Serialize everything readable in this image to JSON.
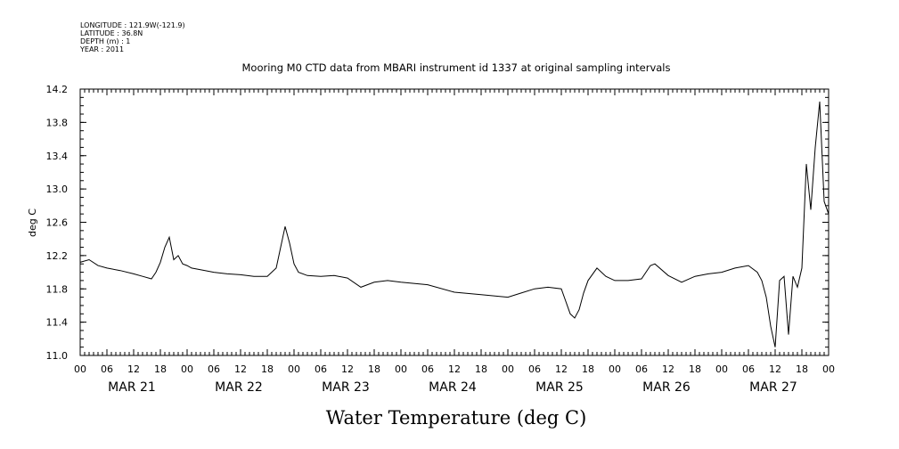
{
  "header": {
    "longitude": "LONGITUDE : 121.9W(-121.9)",
    "latitude": "LATITUDE : 36.8N",
    "depth": "DEPTH (m) : 1",
    "year": "YEAR : 2011"
  },
  "chart_data": {
    "type": "line",
    "title": "Mooring M0 CTD data from MBARI instrument id 1337 at original sampling intervals",
    "xlabel": "Water Temperature (deg C)",
    "ylabel": "deg C",
    "ylim": [
      11.0,
      14.2
    ],
    "yticks": [
      "11.0",
      "11.4",
      "11.8",
      "12.2",
      "12.6",
      "13.0",
      "13.4",
      "13.8",
      "14.2"
    ],
    "xlim": [
      "2011-03-21T00:00",
      "2011-03-28T00:00"
    ],
    "hour_tick_labels": [
      "00",
      "06",
      "12",
      "18"
    ],
    "date_labels": [
      "MAR 21",
      "MAR 22",
      "MAR 23",
      "MAR 24",
      "MAR 25",
      "MAR 26",
      "MAR 27"
    ],
    "grid": false,
    "series": [
      {
        "color": "#000000",
        "x": [
          "2011-03-21T00:00",
          "2011-03-21T02:00",
          "2011-03-21T04:00",
          "2011-03-21T06:00",
          "2011-03-21T09:00",
          "2011-03-21T12:00",
          "2011-03-21T14:00",
          "2011-03-21T16:00",
          "2011-03-21T17:00",
          "2011-03-21T18:00",
          "2011-03-21T19:00",
          "2011-03-21T20:00",
          "2011-03-21T21:00",
          "2011-03-21T22:00",
          "2011-03-21T23:00",
          "2011-03-22T00:00",
          "2011-03-22T01:00",
          "2011-03-22T03:00",
          "2011-03-22T06:00",
          "2011-03-22T09:00",
          "2011-03-22T12:00",
          "2011-03-22T15:00",
          "2011-03-22T18:00",
          "2011-03-22T20:00",
          "2011-03-22T21:00",
          "2011-03-22T22:00",
          "2011-03-22T23:00",
          "2011-03-23T00:00",
          "2011-03-23T01:00",
          "2011-03-23T03:00",
          "2011-03-23T06:00",
          "2011-03-23T09:00",
          "2011-03-23T12:00",
          "2011-03-23T15:00",
          "2011-03-23T18:00",
          "2011-03-23T21:00",
          "2011-03-24T00:00",
          "2011-03-24T06:00",
          "2011-03-24T12:00",
          "2011-03-24T18:00",
          "2011-03-25T00:00",
          "2011-03-25T03:00",
          "2011-03-25T06:00",
          "2011-03-25T09:00",
          "2011-03-25T12:00",
          "2011-03-25T14:00",
          "2011-03-25T15:00",
          "2011-03-25T16:00",
          "2011-03-25T17:00",
          "2011-03-25T18:00",
          "2011-03-25T20:00",
          "2011-03-25T22:00",
          "2011-03-26T00:00",
          "2011-03-26T03:00",
          "2011-03-26T06:00",
          "2011-03-26T08:00",
          "2011-03-26T09:00",
          "2011-03-26T12:00",
          "2011-03-26T15:00",
          "2011-03-26T18:00",
          "2011-03-26T21:00",
          "2011-03-27T00:00",
          "2011-03-27T03:00",
          "2011-03-27T06:00",
          "2011-03-27T08:00",
          "2011-03-27T09:00",
          "2011-03-27T10:00",
          "2011-03-27T11:00",
          "2011-03-27T12:00",
          "2011-03-27T13:00",
          "2011-03-27T14:00",
          "2011-03-27T15:00",
          "2011-03-27T16:00",
          "2011-03-27T17:00",
          "2011-03-27T18:00",
          "2011-03-27T19:00",
          "2011-03-27T20:00",
          "2011-03-27T21:00",
          "2011-03-27T22:00",
          "2011-03-27T23:00",
          "2011-03-28T00:00"
        ],
        "y": [
          12.12,
          12.15,
          12.08,
          12.05,
          12.02,
          11.98,
          11.95,
          11.92,
          12.0,
          12.12,
          12.3,
          12.42,
          12.15,
          12.2,
          12.1,
          12.08,
          12.05,
          12.03,
          12.0,
          11.98,
          11.97,
          11.95,
          11.95,
          12.05,
          12.3,
          12.55,
          12.35,
          12.1,
          12.0,
          11.96,
          11.95,
          11.96,
          11.93,
          11.82,
          11.88,
          11.9,
          11.88,
          11.85,
          11.76,
          11.73,
          11.7,
          11.75,
          11.8,
          11.82,
          11.8,
          11.5,
          11.45,
          11.55,
          11.75,
          11.9,
          12.05,
          11.95,
          11.9,
          11.9,
          11.92,
          12.08,
          12.1,
          11.96,
          11.88,
          11.95,
          11.98,
          12.0,
          12.05,
          12.08,
          12.0,
          11.9,
          11.7,
          11.35,
          11.1,
          11.9,
          11.95,
          11.25,
          11.95,
          11.82,
          12.05,
          13.3,
          12.75,
          13.5,
          14.05,
          12.85,
          12.7
        ]
      }
    ]
  }
}
